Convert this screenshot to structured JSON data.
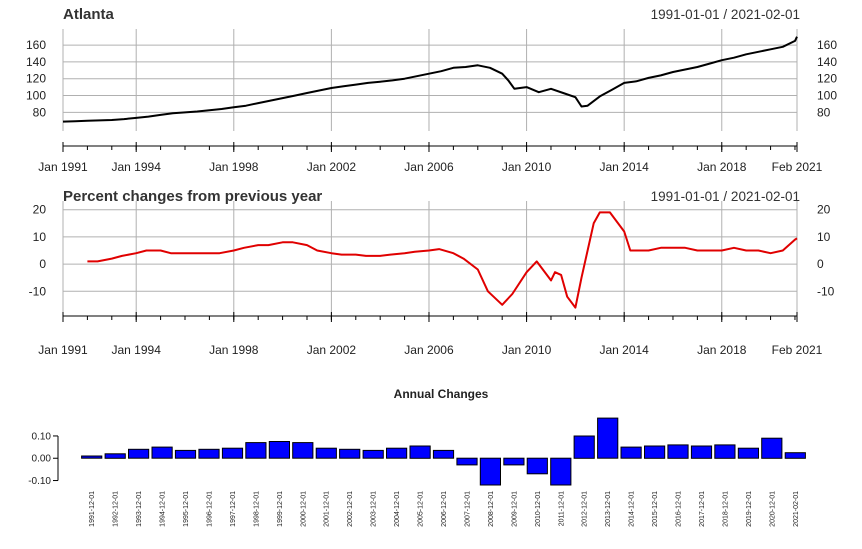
{
  "chart_data": [
    {
      "type": "line",
      "title": "Atlanta",
      "date_range": "1991-01-01 / 2021-02-01",
      "ylim": [
        65,
        172
      ],
      "y_ticks": [
        80,
        100,
        120,
        140,
        160
      ],
      "x_tick_labels": [
        "Jan 1991",
        "Jan 1994",
        "Jan 1998",
        "Jan 2002",
        "Jan 2006",
        "Jan 2010",
        "Jan 2014",
        "Jan 2018",
        "Feb 2021"
      ],
      "line_color": "#000000",
      "grid": true,
      "series": [
        {
          "x": [
            "1991-01",
            "1991-07",
            "1992-01",
            "1992-07",
            "1993-01",
            "1993-07",
            "1994-01",
            "1994-07",
            "1995-01",
            "1995-07",
            "1996-01",
            "1996-07",
            "1997-01",
            "1997-07",
            "1998-01",
            "1998-07",
            "1999-01",
            "1999-07",
            "2000-01",
            "2000-07",
            "2001-01",
            "2001-07",
            "2002-01",
            "2002-07",
            "2003-01",
            "2003-07",
            "2004-01",
            "2004-07",
            "2005-01",
            "2005-07",
            "2006-01",
            "2006-07",
            "2007-01",
            "2007-07",
            "2008-01",
            "2008-07",
            "2009-01",
            "2009-04",
            "2009-07",
            "2010-01",
            "2010-07",
            "2011-01",
            "2011-07",
            "2012-01",
            "2012-04",
            "2012-07",
            "2013-01",
            "2013-07",
            "2014-01",
            "2014-07",
            "2015-01",
            "2015-07",
            "2016-01",
            "2016-07",
            "2017-01",
            "2017-07",
            "2018-01",
            "2018-07",
            "2019-01",
            "2019-07",
            "2020-01",
            "2020-07",
            "2021-01",
            "2021-02"
          ],
          "values": [
            69,
            69.5,
            70,
            70.5,
            71,
            72,
            73.5,
            75,
            77,
            79,
            80,
            81,
            82.5,
            84,
            86,
            88,
            91,
            94,
            97,
            100,
            103,
            106,
            109,
            111,
            113,
            115,
            116.5,
            118,
            120,
            123,
            126,
            129,
            133,
            134,
            136,
            133,
            126,
            118,
            108,
            110,
            104,
            108,
            103,
            98,
            87,
            88,
            99,
            107,
            115,
            117,
            121,
            124,
            128,
            131,
            134,
            138,
            142,
            145,
            149,
            152,
            155,
            158,
            165,
            170
          ]
        }
      ]
    },
    {
      "type": "line",
      "title": "Percent changes from previous year",
      "date_range": "1991-01-01 / 2021-02-01",
      "ylim": [
        -18,
        21
      ],
      "y_ticks": [
        -10,
        0,
        10,
        20
      ],
      "x_tick_labels": [
        "Jan 1991",
        "Jan 1994",
        "Jan 1998",
        "Jan 2002",
        "Jan 2006",
        "Jan 2010",
        "Jan 2014",
        "Jan 2018",
        "Feb 2021"
      ],
      "line_color": "#e00000",
      "grid": true,
      "series": [
        {
          "x": [
            "1992-01",
            "1992-06",
            "1993-01",
            "1993-06",
            "1994-01",
            "1994-06",
            "1995-01",
            "1995-06",
            "1996-01",
            "1996-06",
            "1997-01",
            "1997-06",
            "1998-01",
            "1998-06",
            "1999-01",
            "1999-06",
            "2000-01",
            "2000-06",
            "2001-01",
            "2001-06",
            "2002-01",
            "2002-06",
            "2003-01",
            "2003-06",
            "2004-01",
            "2004-06",
            "2005-01",
            "2005-06",
            "2006-01",
            "2006-06",
            "2007-01",
            "2007-06",
            "2008-01",
            "2008-06",
            "2009-01",
            "2009-06",
            "2010-01",
            "2010-06",
            "2011-01",
            "2011-03",
            "2011-06",
            "2011-09",
            "2012-01",
            "2012-04",
            "2012-07",
            "2012-10",
            "2013-01",
            "2013-06",
            "2014-01",
            "2014-04",
            "2014-07",
            "2015-01",
            "2015-07",
            "2016-01",
            "2016-07",
            "2017-01",
            "2017-07",
            "2018-01",
            "2018-07",
            "2019-01",
            "2019-07",
            "2020-01",
            "2020-07",
            "2021-01",
            "2021-02"
          ],
          "values": [
            1,
            1,
            2,
            3,
            4,
            5,
            5,
            4,
            4,
            4,
            4,
            4,
            5,
            6,
            7,
            7,
            8,
            8,
            7,
            5,
            4,
            3.5,
            3.5,
            3,
            3,
            3.5,
            4,
            4.5,
            5,
            5.5,
            4,
            2,
            -2,
            -10,
            -15,
            -11,
            -3,
            1,
            -6,
            -3,
            -4,
            -12,
            -16,
            -5,
            5,
            15,
            19,
            19,
            12,
            5,
            5,
            5,
            6,
            6,
            6,
            5,
            5,
            5,
            6,
            5,
            5,
            4,
            5,
            9,
            9.5
          ]
        }
      ]
    },
    {
      "type": "bar",
      "title": "Annual Changes",
      "categories": [
        "1991-12-01",
        "1992-12-01",
        "1993-12-01",
        "1994-12-01",
        "1995-12-01",
        "1996-12-01",
        "1997-12-01",
        "1998-12-01",
        "1999-12-01",
        "2000-12-01",
        "2001-12-01",
        "2002-12-01",
        "2003-12-01",
        "2004-12-01",
        "2005-12-01",
        "2006-12-01",
        "2007-12-01",
        "2008-12-01",
        "2009-12-01",
        "2010-12-01",
        "2011-12-01",
        "2012-12-01",
        "2013-12-01",
        "2014-12-01",
        "2015-12-01",
        "2016-12-01",
        "2017-12-01",
        "2018-12-01",
        "2019-12-01",
        "2020-12-01",
        "2021-02-01"
      ],
      "values": [
        0.01,
        0.02,
        0.04,
        0.05,
        0.035,
        0.04,
        0.045,
        0.07,
        0.075,
        0.07,
        0.045,
        0.04,
        0.035,
        0.045,
        0.055,
        0.035,
        -0.03,
        -0.12,
        -0.03,
        -0.07,
        -0.12,
        0.1,
        0.18,
        0.05,
        0.055,
        0.06,
        0.055,
        0.06,
        0.045,
        0.09,
        0.025
      ],
      "ylim": [
        -0.12,
        0.185
      ],
      "y_ticks": [
        -0.1,
        0.0,
        0.1
      ],
      "y_tick_labels": [
        "-0.10",
        "0.00",
        "0.10"
      ],
      "bar_color": "#0000ff",
      "bar_border": "#000000"
    }
  ]
}
